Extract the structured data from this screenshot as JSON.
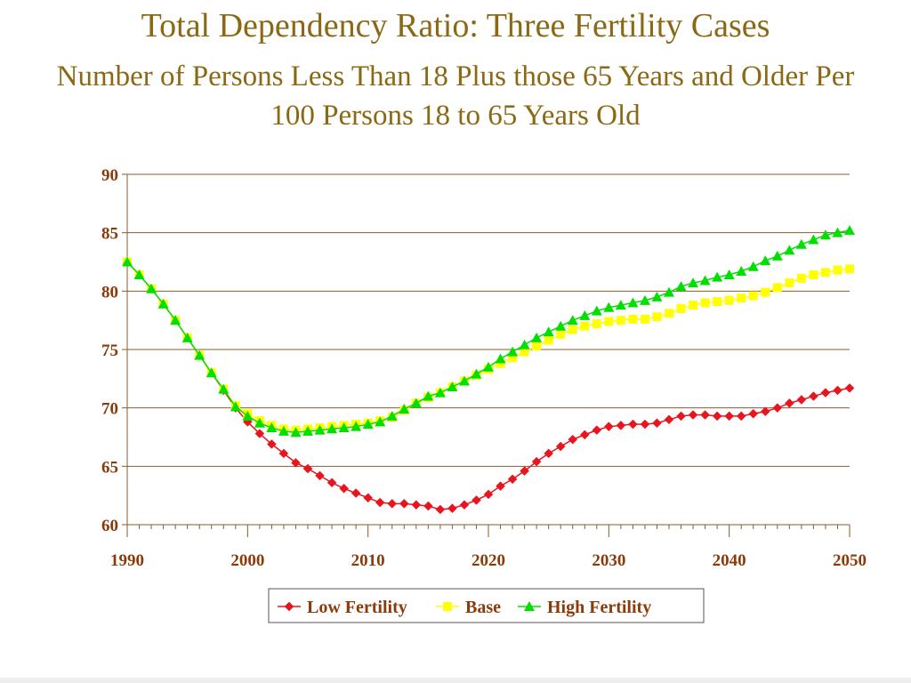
{
  "header": {
    "title": "Total Dependency Ratio: Three Fertility Cases",
    "subtitle": "Number of Persons Less Than 18 Plus those 65 Years and Older Per 100 Persons 18 to 65 Years Old"
  },
  "chart_data": {
    "type": "line",
    "title": "Total Dependency Ratio: Three Fertility Cases",
    "subtitle": "Number of Persons Less Than 18 Plus those 65 Years and Older Per 100 Persons 18 to 65 Years Old",
    "xlabel": "",
    "ylabel": "",
    "xlim": [
      1990,
      2050
    ],
    "ylim": [
      60,
      90
    ],
    "x_ticks": [
      1990,
      2000,
      2010,
      2020,
      2030,
      2040,
      2050
    ],
    "y_ticks": [
      60,
      65,
      70,
      75,
      80,
      85,
      90
    ],
    "grid": "horizontal",
    "legend_position": "bottom",
    "x": [
      1990,
      1991,
      1992,
      1993,
      1994,
      1995,
      1996,
      1997,
      1998,
      1999,
      2000,
      2001,
      2002,
      2003,
      2004,
      2005,
      2006,
      2007,
      2008,
      2009,
      2010,
      2011,
      2012,
      2013,
      2014,
      2015,
      2016,
      2017,
      2018,
      2019,
      2020,
      2021,
      2022,
      2023,
      2024,
      2025,
      2026,
      2027,
      2028,
      2029,
      2030,
      2031,
      2032,
      2033,
      2034,
      2035,
      2036,
      2037,
      2038,
      2039,
      2040,
      2041,
      2042,
      2043,
      2044,
      2045,
      2046,
      2047,
      2048,
      2049,
      2050
    ],
    "series": [
      {
        "name": "Low Fertility",
        "color": "#e8141e",
        "marker": "diamond",
        "values": [
          82.5,
          81.4,
          80.2,
          78.9,
          77.5,
          76.0,
          74.5,
          73.0,
          71.5,
          70.0,
          68.8,
          67.8,
          66.9,
          66.1,
          65.3,
          64.8,
          64.2,
          63.6,
          63.1,
          62.7,
          62.3,
          61.9,
          61.8,
          61.8,
          61.7,
          61.6,
          61.3,
          61.4,
          61.7,
          62.1,
          62.6,
          63.3,
          63.9,
          64.6,
          65.4,
          66.1,
          66.7,
          67.3,
          67.7,
          68.1,
          68.4,
          68.5,
          68.6,
          68.6,
          68.7,
          69.0,
          69.3,
          69.4,
          69.4,
          69.3,
          69.3,
          69.3,
          69.5,
          69.7,
          70.0,
          70.4,
          70.7,
          71.0,
          71.3,
          71.5,
          71.7
        ]
      },
      {
        "name": "Base",
        "color": "#ffff00",
        "marker": "square",
        "values": [
          82.5,
          81.4,
          80.2,
          78.9,
          77.5,
          76.0,
          74.5,
          73.0,
          71.6,
          70.2,
          69.5,
          68.9,
          68.5,
          68.2,
          68.1,
          68.2,
          68.3,
          68.4,
          68.5,
          68.6,
          68.7,
          68.9,
          69.2,
          69.8,
          70.4,
          70.9,
          71.3,
          71.8,
          72.3,
          72.8,
          73.3,
          73.8,
          74.3,
          74.8,
          75.3,
          75.8,
          76.3,
          76.7,
          77.0,
          77.2,
          77.4,
          77.5,
          77.6,
          77.6,
          77.8,
          78.1,
          78.5,
          78.8,
          79.0,
          79.1,
          79.2,
          79.4,
          79.6,
          79.9,
          80.3,
          80.7,
          81.1,
          81.4,
          81.6,
          81.8,
          81.9
        ]
      },
      {
        "name": "High Fertility",
        "color": "#00e000",
        "marker": "triangle",
        "values": [
          82.5,
          81.4,
          80.2,
          78.9,
          77.5,
          76.0,
          74.5,
          73.0,
          71.6,
          70.1,
          69.3,
          68.7,
          68.3,
          68.0,
          67.9,
          68.0,
          68.1,
          68.2,
          68.3,
          68.4,
          68.6,
          68.8,
          69.3,
          69.9,
          70.4,
          71.0,
          71.3,
          71.8,
          72.3,
          72.9,
          73.5,
          74.2,
          74.8,
          75.4,
          76.0,
          76.5,
          77.0,
          77.5,
          77.9,
          78.3,
          78.6,
          78.8,
          79.0,
          79.2,
          79.5,
          79.9,
          80.4,
          80.7,
          80.9,
          81.2,
          81.4,
          81.7,
          82.1,
          82.6,
          83.0,
          83.5,
          84.0,
          84.4,
          84.8,
          85.0,
          85.2
        ]
      }
    ]
  }
}
